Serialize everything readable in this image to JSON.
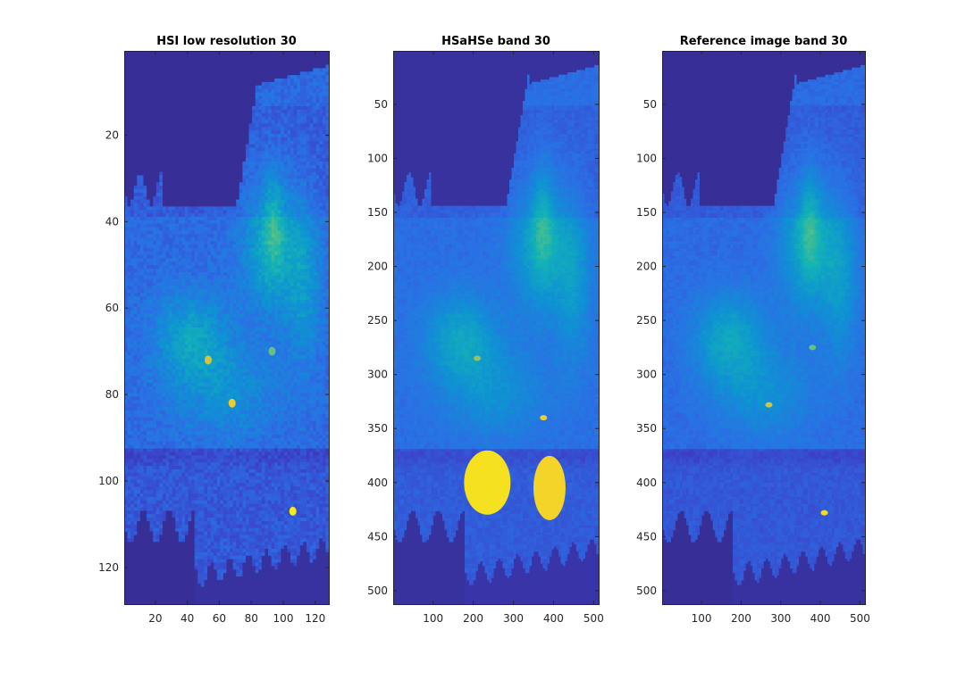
{
  "figure": {
    "background": "#ffffff"
  },
  "colormap": {
    "name": "parula",
    "stops": [
      "#352a87",
      "#3c3fc6",
      "#2b6fe5",
      "#0f92d3",
      "#13b3b5",
      "#68c37a",
      "#c0bb41",
      "#f5d22a",
      "#f9fb0e"
    ]
  },
  "chart_data": [
    {
      "type": "heatmap",
      "title": "HSI low resolution 30",
      "x_ticks": [
        20,
        40,
        60,
        80,
        100,
        120
      ],
      "y_ticks": [
        20,
        40,
        60,
        80,
        100,
        120
      ],
      "xlim": [
        0.5,
        128.5
      ],
      "ylim": [
        0.5,
        128.5
      ],
      "y_direction": "reverse",
      "grid": false,
      "hotspots": [
        {
          "x": 93,
          "y": 70,
          "value": 0.62
        },
        {
          "x": 68,
          "y": 82,
          "value": 0.85
        },
        {
          "x": 53,
          "y": 72,
          "value": 0.8
        },
        {
          "x": 106,
          "y": 107,
          "value": 0.95
        }
      ]
    },
    {
      "type": "heatmap",
      "title": "HSaHSe band 30",
      "x_ticks": [
        100,
        200,
        300,
        400,
        500
      ],
      "y_ticks": [
        50,
        100,
        150,
        200,
        250,
        300,
        350,
        400,
        450,
        500
      ],
      "xlim": [
        0.5,
        512.5
      ],
      "ylim": [
        0.5,
        512.5
      ],
      "y_direction": "reverse",
      "grid": false,
      "hotspots": [
        {
          "x": 235,
          "y": 400,
          "value": 0.92
        },
        {
          "x": 390,
          "y": 405,
          "value": 0.88
        },
        {
          "x": 375,
          "y": 340,
          "value": 0.85
        },
        {
          "x": 210,
          "y": 285,
          "value": 0.7
        }
      ]
    },
    {
      "type": "heatmap",
      "title": "Reference image band 30",
      "x_ticks": [
        100,
        200,
        300,
        400,
        500
      ],
      "y_ticks": [
        50,
        100,
        150,
        200,
        250,
        300,
        350,
        400,
        450,
        500
      ],
      "xlim": [
        0.5,
        512.5
      ],
      "ylim": [
        0.5,
        512.5
      ],
      "y_direction": "reverse",
      "grid": false,
      "hotspots": [
        {
          "x": 380,
          "y": 275,
          "value": 0.62
        },
        {
          "x": 270,
          "y": 328,
          "value": 0.8
        },
        {
          "x": 410,
          "y": 428,
          "value": 0.9
        }
      ]
    }
  ]
}
